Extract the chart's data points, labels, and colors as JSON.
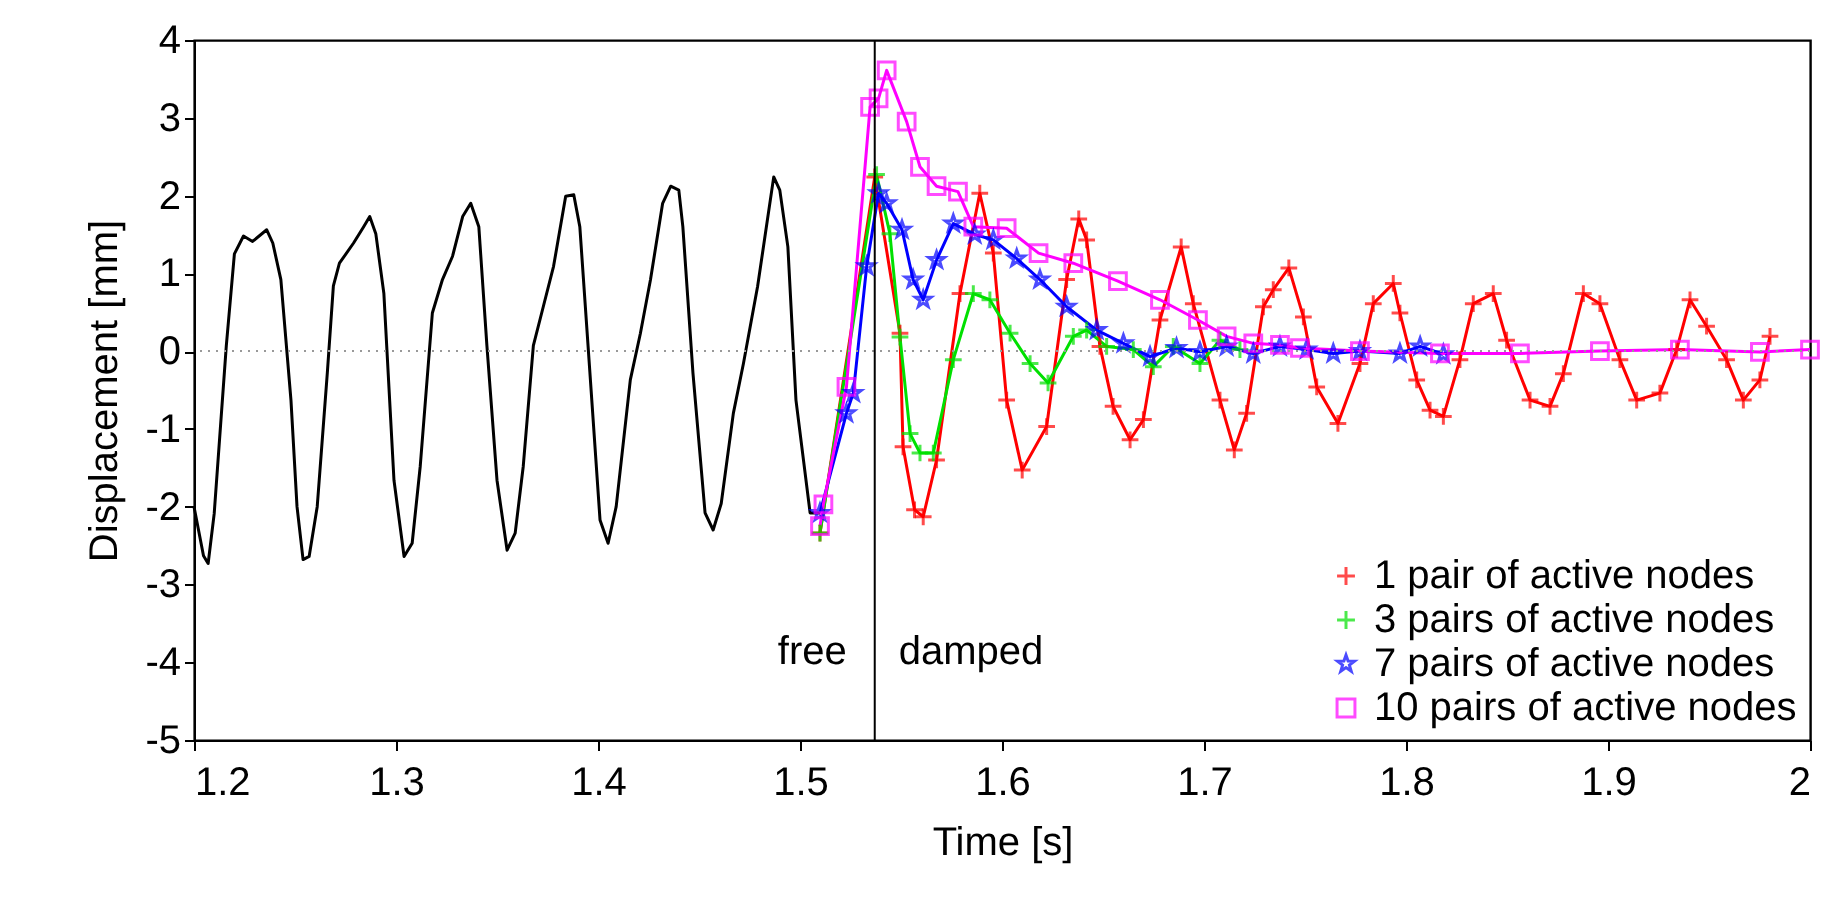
{
  "chart_data": {
    "type": "line",
    "xlabel": "Time [s]",
    "ylabel": "Displacement [mm]",
    "xlim": [
      1.2,
      2
    ],
    "xticks": [
      1.2,
      1.3,
      1.4,
      1.5,
      1.6,
      1.7,
      1.8,
      1.9,
      2
    ],
    "ylim": [
      -5,
      4
    ],
    "yticks": [
      -5,
      -4,
      -3,
      -2,
      -1,
      0,
      1,
      2,
      3,
      4
    ],
    "grid": false,
    "legend": "bottom right",
    "series": [
      {
        "color": "#000000",
        "marker": "none",
        "x": [
          1.2,
          1.2047,
          1.207,
          1.21,
          1.216,
          1.22,
          1.2245,
          1.229,
          1.236,
          1.239,
          1.243,
          1.248,
          1.251,
          1.254,
          1.257,
          1.261,
          1.266,
          1.269,
          1.272,
          1.279,
          1.284,
          1.287,
          1.29,
          1.294,
          1.299,
          1.304,
          1.308,
          1.312,
          1.318,
          1.323,
          1.328,
          1.333,
          1.337,
          1.341,
          1.345,
          1.35,
          1.355,
          1.359,
          1.363,
          1.368,
          1.373,
          1.378,
          1.384,
          1.388,
          1.391,
          1.396,
          1.401,
          1.405,
          1.409,
          1.416,
          1.421,
          1.426,
          1.432,
          1.436,
          1.44,
          1.442,
          1.447,
          1.453,
          1.457,
          1.461,
          1.467,
          1.472,
          1.479,
          1.487,
          1.49,
          1.494,
          1.498,
          1.505,
          1.51
        ],
        "values": [
          -2.0,
          -2.63,
          -2.73,
          -2.09,
          0.07,
          1.25,
          1.48,
          1.41,
          1.56,
          1.39,
          0.92,
          -0.63,
          -2.0,
          -2.68,
          -2.64,
          -2.0,
          -0.28,
          0.84,
          1.13,
          1.39,
          1.6,
          1.73,
          1.51,
          0.74,
          -1.66,
          -2.64,
          -2.47,
          -1.48,
          0.49,
          0.92,
          1.22,
          1.73,
          1.9,
          1.6,
          0.07,
          -1.66,
          -2.56,
          -2.34,
          -1.48,
          0.07,
          0.58,
          1.09,
          1.99,
          2.01,
          1.6,
          -0.28,
          -2.17,
          -2.47,
          -2.0,
          -0.37,
          0.23,
          0.92,
          1.9,
          2.12,
          2.07,
          1.6,
          -0.28,
          -2.08,
          -2.3,
          -1.96,
          -0.8,
          -0.16,
          0.83,
          2.24,
          2.07,
          1.34,
          -0.63,
          -2.08,
          -2.08
        ]
      },
      {
        "name": "1 pair of active nodes",
        "color": "#ff0000",
        "marker": "cross",
        "x": [
          1.5099,
          1.537,
          1.5495,
          1.551,
          1.5567,
          1.561,
          1.5676,
          1.5792,
          1.589,
          1.5957,
          1.6023,
          1.61,
          1.6221,
          1.632,
          1.638,
          1.6419,
          1.6485,
          1.655,
          1.6634,
          1.67,
          1.6782,
          1.6887,
          1.6947,
          1.7079,
          1.715,
          1.7211,
          1.7294,
          1.7343,
          1.742,
          1.7492,
          1.7558,
          1.7663,
          1.7772,
          1.7838,
          1.7937,
          1.797,
          1.8053,
          1.8119,
          1.8185,
          1.8267,
          1.8333,
          1.8432,
          1.8498,
          1.8614,
          1.8713,
          1.8779,
          1.8878,
          1.896,
          1.9059,
          1.9142,
          1.9257,
          1.934,
          1.9406,
          1.9488,
          1.9587,
          1.967,
          1.9752,
          1.9802
        ],
        "values": [
          -2.34,
          2.24,
          0.23,
          -1.23,
          -2.04,
          -2.13,
          -1.4,
          0.74,
          2.03,
          1.26,
          -0.63,
          -1.53,
          -0.97,
          0.92,
          1.7,
          1.43,
          0.06,
          -0.71,
          -1.14,
          -0.88,
          0.4,
          1.34,
          0.61,
          -0.63,
          -1.27,
          -0.8,
          0.57,
          0.79,
          1.07,
          0.44,
          -0.46,
          -0.93,
          -0.16,
          0.61,
          0.87,
          0.49,
          -0.37,
          -0.76,
          -0.84,
          -0.11,
          0.61,
          0.74,
          0.14,
          -0.63,
          -0.71,
          -0.29,
          0.74,
          0.61,
          -0.11,
          -0.63,
          -0.54,
          0.02,
          0.66,
          0.32,
          -0.11,
          -0.63,
          -0.37,
          0.19
        ]
      },
      {
        "name": "3 pairs of active nodes",
        "color": "#00e000",
        "marker": "cross",
        "x": [
          1.5099,
          1.5379,
          1.5445,
          1.5495,
          1.5545,
          1.5594,
          1.566,
          1.5759,
          1.5858,
          1.594,
          1.604,
          1.6139,
          1.6228,
          1.6353,
          1.6419,
          1.6518,
          1.665,
          1.6749,
          1.6848,
          1.698,
          1.7079,
          1.7178
        ],
        "values": [
          -2.34,
          2.27,
          1.51,
          0.18,
          -1.06,
          -1.31,
          -1.31,
          -0.11,
          0.74,
          0.66,
          0.23,
          -0.16,
          -0.41,
          0.19,
          0.27,
          0.06,
          0.02,
          -0.2,
          0.06,
          -0.16,
          0.14,
          0.02
        ]
      },
      {
        "name": "7 pairs of active nodes",
        "color": "#0000ff",
        "marker": "star",
        "x": [
          1.5099,
          1.523,
          1.5264,
          1.533,
          1.5389,
          1.5429,
          1.5505,
          1.556,
          1.561,
          1.5676,
          1.5759,
          1.5865,
          1.5957,
          1.6073,
          1.6188,
          1.632,
          1.6469,
          1.6601,
          1.6733,
          1.6864,
          1.698,
          1.7112,
          1.7244,
          1.7376,
          1.7508,
          1.764,
          1.7772,
          1.797,
          1.807,
          1.8185
        ],
        "values": [
          -2.08,
          -0.8,
          -0.54,
          1.09,
          2.03,
          1.9,
          1.56,
          0.92,
          0.66,
          1.17,
          1.64,
          1.5,
          1.43,
          1.19,
          0.92,
          0.57,
          0.27,
          0.1,
          -0.07,
          0.04,
          -0.01,
          0.06,
          -0.03,
          0.06,
          0.02,
          -0.03,
          0.0,
          -0.03,
          0.06,
          -0.04
        ]
      },
      {
        "name": "10 pairs of active nodes",
        "color": "#ff00ff",
        "marker": "square",
        "x": [
          1.5099,
          1.5116,
          1.523,
          1.5347,
          1.5389,
          1.5429,
          1.5528,
          1.5594,
          1.5676,
          1.5782,
          1.5858,
          1.6023,
          1.6181,
          1.6353,
          1.6574,
          1.6782,
          1.697,
          1.7112,
          1.7244,
          1.7376,
          1.7475,
          1.7772,
          1.8168,
          1.8564,
          1.896,
          1.9356,
          1.9752,
          2.0
        ],
        "values": [
          -2.25,
          -1.97,
          -0.46,
          3.14,
          3.25,
          3.61,
          2.95,
          2.37,
          2.12,
          2.05,
          1.6,
          1.58,
          1.26,
          1.13,
          0.9,
          0.66,
          0.4,
          0.19,
          0.1,
          0.08,
          0.04,
          0.0,
          -0.03,
          -0.03,
          0.0,
          0.02,
          -0.01,
          0.02
        ]
      }
    ],
    "ref_lines": [
      {
        "axis": "y",
        "value": 0,
        "line_style": "dotted",
        "color": "#999999"
      },
      {
        "axis": "x",
        "value": 1.537,
        "color": "#000000"
      }
    ],
    "annotations": [
      "free",
      "damped"
    ]
  }
}
